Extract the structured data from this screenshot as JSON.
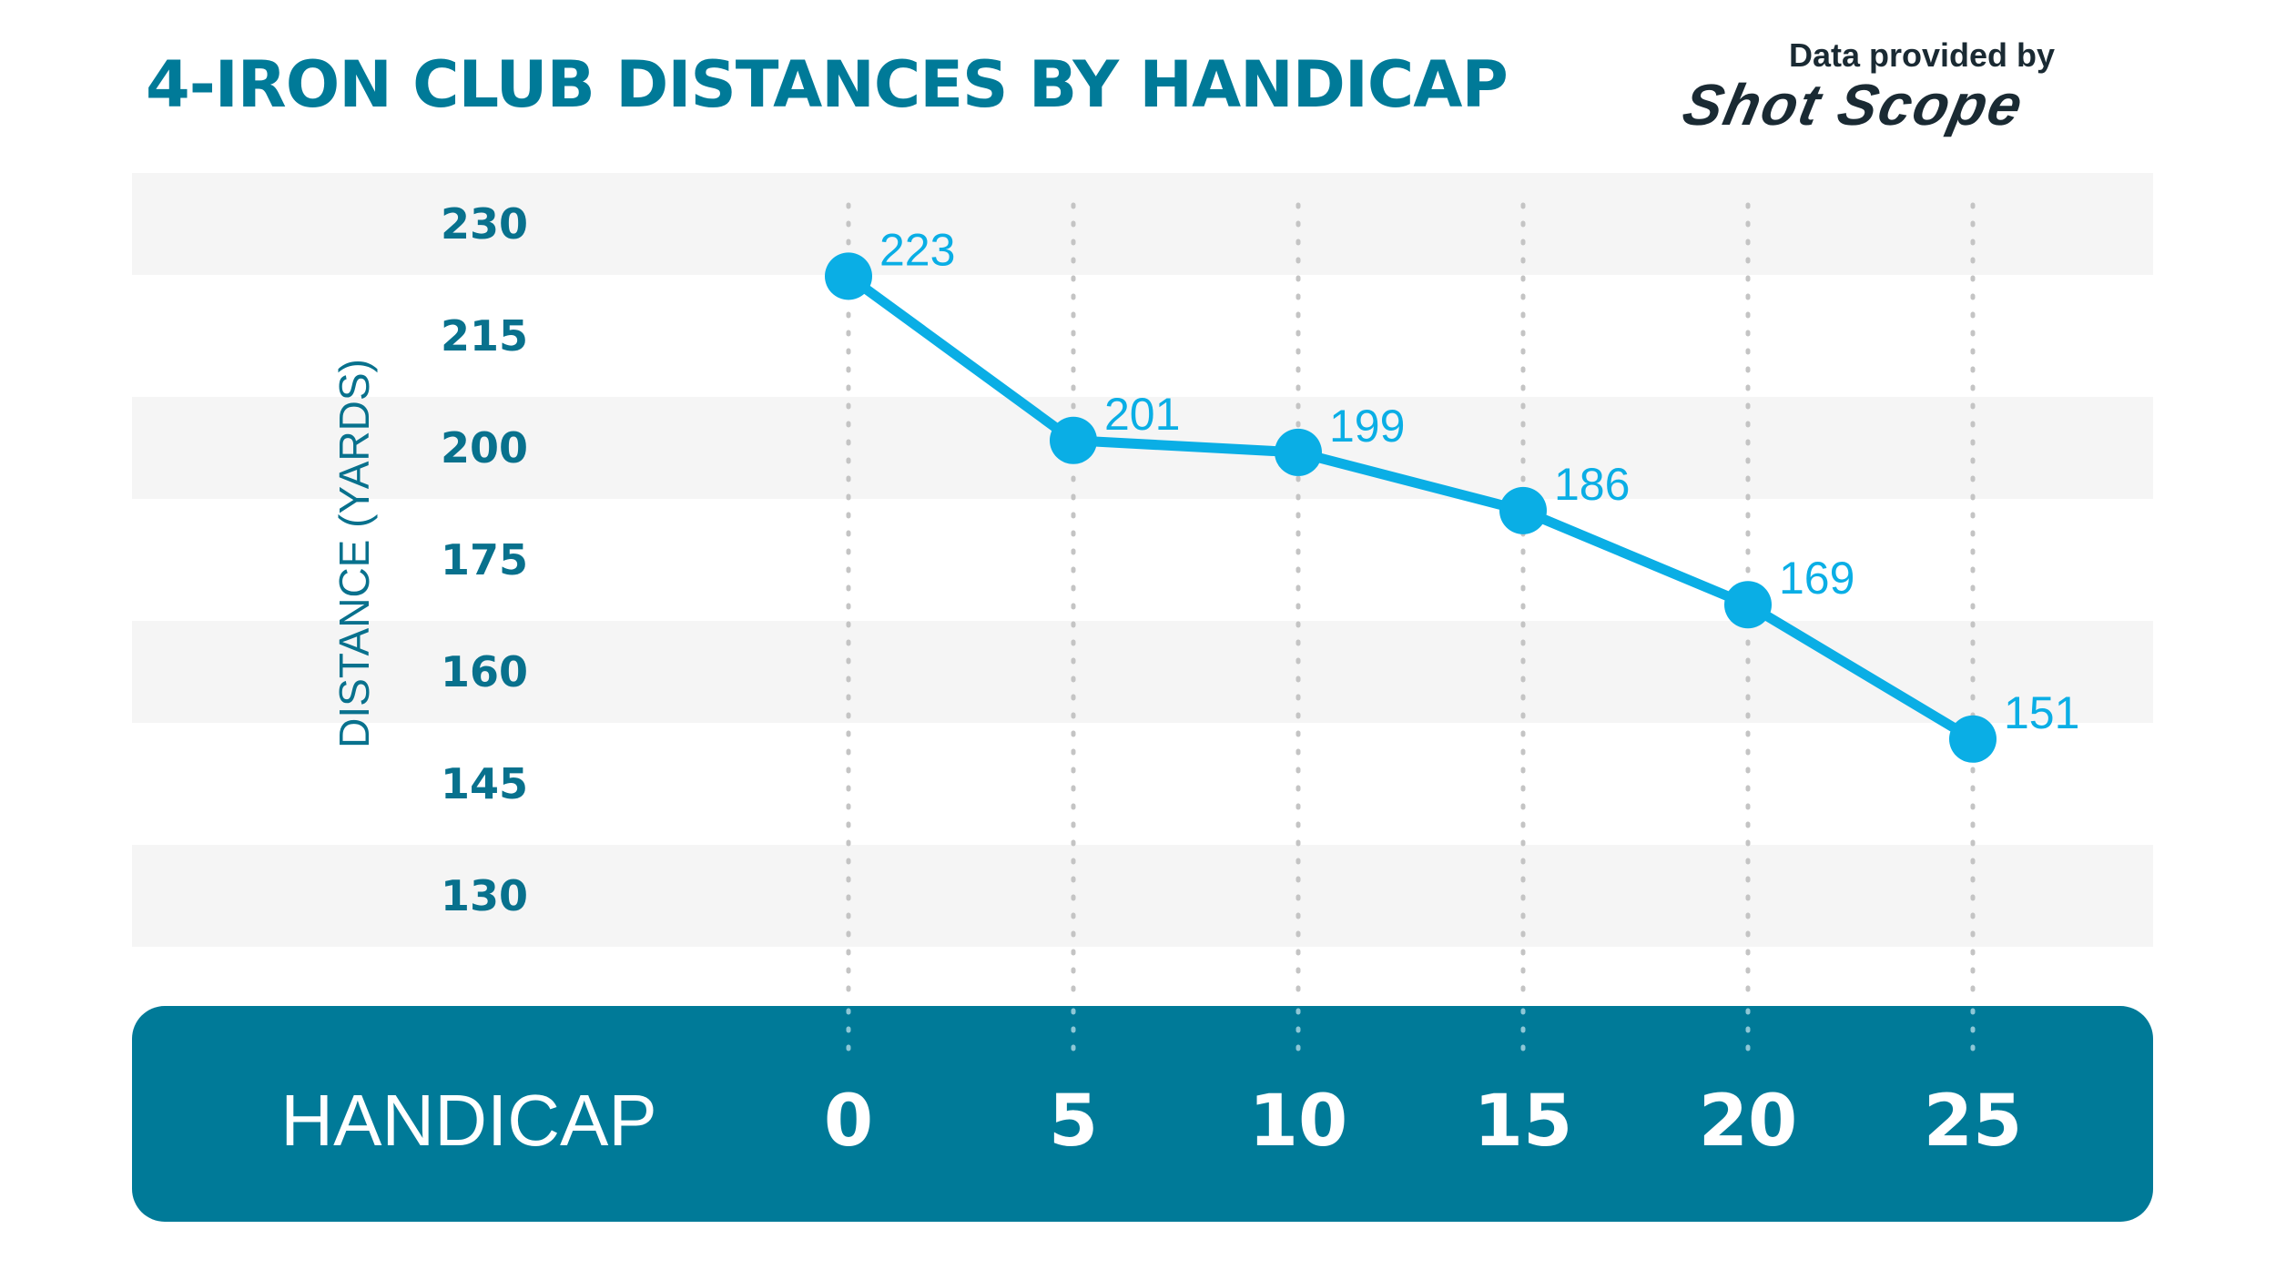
{
  "header": {
    "title": "4-IRON CLUB DISTANCES BY HANDICAP",
    "credit": "Data provided by",
    "brand_logo": "Shot Scope"
  },
  "colors": {
    "title": "#007a98",
    "line": "#0aaee5",
    "band": "#f5f5f5",
    "footer": "#007a98",
    "axis_text": "#08718d",
    "grid": "#c4c4c4"
  },
  "chart_data": {
    "type": "line",
    "title": "4-IRON CLUB DISTANCES BY HANDICAP",
    "xlabel": "HANDICAP",
    "ylabel": "DISTANCE (YARDS)",
    "x": [
      0,
      5,
      10,
      15,
      20,
      25
    ],
    "x_tick_labels": [
      "0",
      "5",
      "10",
      "15",
      "20",
      "25"
    ],
    "y_tick_labels": [
      "230",
      "215",
      "200",
      "175",
      "160",
      "145",
      "130"
    ],
    "y_tick_values": [
      230,
      215,
      200,
      175,
      160,
      145,
      130
    ],
    "ylim": [
      130,
      230
    ],
    "y_scale_note": "",
    "series": [
      {
        "name": "",
        "values": [
          223,
          201,
          199,
          186,
          169,
          151
        ],
        "labels": [
          "223",
          "201",
          "199",
          "186",
          "169",
          "151"
        ]
      }
    ],
    "grid": "vertical dotted",
    "legend": "none"
  }
}
